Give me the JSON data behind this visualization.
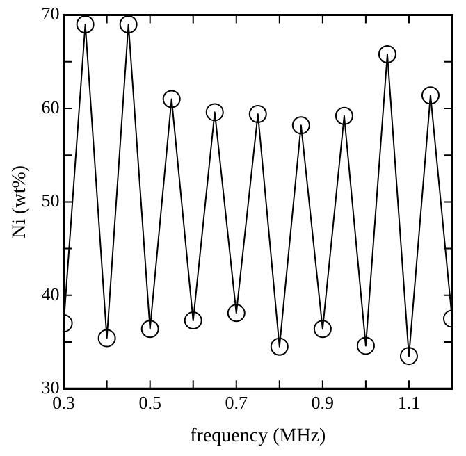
{
  "chart_data": {
    "type": "line",
    "xlabel": "frequency (MHz)",
    "ylabel": "Ni (wt%)",
    "x": [
      0.3,
      0.35,
      0.4,
      0.45,
      0.5,
      0.55,
      0.6,
      0.65,
      0.7,
      0.75,
      0.8,
      0.85,
      0.9,
      0.95,
      1.0,
      1.05,
      1.1,
      1.15,
      1.2
    ],
    "series": [
      {
        "color": "#000000",
        "values": [
          37.0,
          69.0,
          35.4,
          69.0,
          36.4,
          61.0,
          37.3,
          59.6,
          38.1,
          59.4,
          34.5,
          58.2,
          36.4,
          59.2,
          34.6,
          65.8,
          33.5,
          61.4,
          37.5
        ]
      }
    ],
    "xlim": [
      0.3,
      1.2
    ],
    "xticks": [
      0.3,
      {
        "value": 0.4,
        "label": null
      },
      0.5,
      {
        "value": 0.6,
        "label": null
      },
      0.7,
      {
        "value": 0.8,
        "label": null
      },
      0.9,
      {
        "value": 1.0,
        "label": null
      },
      1.1,
      {
        "value": 1.2,
        "label": null
      }
    ],
    "ylim": [
      30,
      70
    ],
    "yticks": [
      30,
      {
        "value": 35,
        "label": null
      },
      40,
      {
        "value": 45,
        "label": null
      },
      50,
      {
        "value": 55,
        "label": null
      },
      60,
      {
        "value": 65,
        "label": null
      },
      70
    ],
    "marker": "circle",
    "line_style": "solid",
    "grid": false,
    "legend": false
  }
}
